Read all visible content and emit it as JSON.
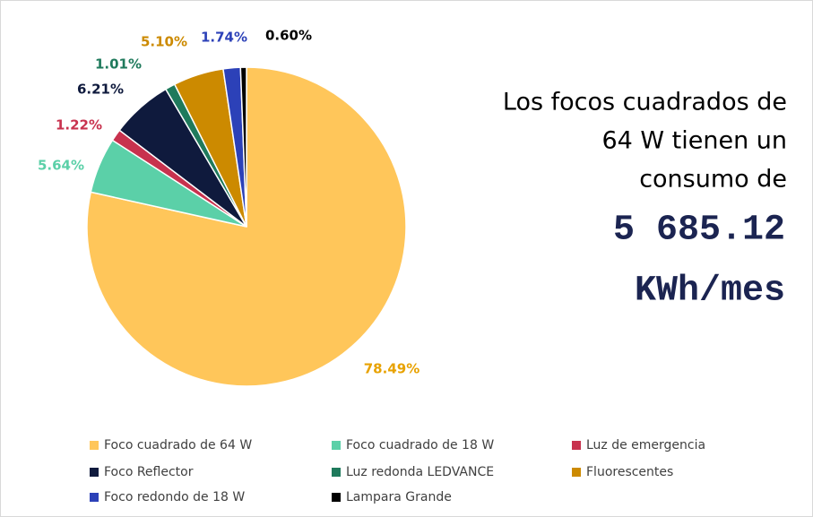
{
  "chart_data": {
    "type": "pie",
    "categories": [
      "Foco cuadrado de 64 W",
      "Foco cuadrado de 18 W",
      "Luz de emergencia",
      "Foco Reflector",
      "Luz redonda LEDVANCE",
      "Fluorescentes",
      "Foco redondo de 18 W",
      "Lampara Grande"
    ],
    "values": [
      78.49,
      5.64,
      1.22,
      6.21,
      1.01,
      5.1,
      1.74,
      0.6
    ],
    "value_labels": [
      "78.49%",
      "5.64%",
      "1.22%",
      "6.21%",
      "1.01%",
      "5.10%",
      "1.74%",
      "0.60%"
    ],
    "colors": [
      "#ffc65a",
      "#5bd0a8",
      "#c8324e",
      "#0f1a3d",
      "#1f7a5c",
      "#cc8a00",
      "#2c41b8",
      "#000000"
    ],
    "label_colors": [
      "#e8a200",
      "#5bd0a8",
      "#c8324e",
      "#0f1a3d",
      "#1f7a5c",
      "#cc8a00",
      "#2c41b8",
      "#000000"
    ],
    "annotation": [
      "Los focos cuadrados de",
      "64 W tienen un",
      "consumo de"
    ],
    "annotation_value": [
      "5 685.12",
      "KWh/mes"
    ],
    "legend": "bottom"
  }
}
